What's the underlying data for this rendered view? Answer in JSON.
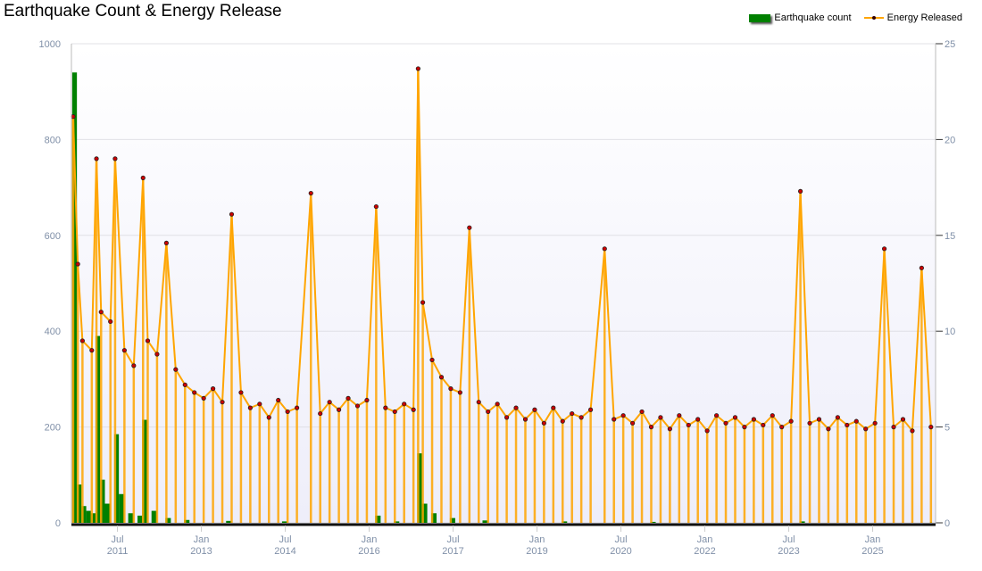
{
  "chart_data": {
    "type": "bar+line",
    "title": "Earthquake Count & Energy Release",
    "legend": [
      "Earthquake count",
      "Energy Released"
    ],
    "legend_position": "top-right",
    "colors": {
      "count": "#008000",
      "energy_line": "#ffa500",
      "energy_marker": "#cc0000"
    },
    "y_left": {
      "range": [
        0,
        1000
      ],
      "ticks": [
        "0",
        "200",
        "400",
        "600",
        "800",
        "1000"
      ]
    },
    "y_right": {
      "range": [
        0,
        25
      ],
      "ticks": [
        "0",
        "5",
        "10",
        "15",
        "20",
        "25"
      ]
    },
    "x_range": [
      "2010-09",
      "2026-02"
    ],
    "x_ticks": [
      {
        "date": "2011-07",
        "month": "Jul",
        "year": "2011"
      },
      {
        "date": "2013-01",
        "month": "Jan",
        "year": "2013"
      },
      {
        "date": "2014-07",
        "month": "Jul",
        "year": "2014"
      },
      {
        "date": "2016-01",
        "month": "Jan",
        "year": "2016"
      },
      {
        "date": "2017-07",
        "month": "Jul",
        "year": "2017"
      },
      {
        "date": "2019-01",
        "month": "Jan",
        "year": "2019"
      },
      {
        "date": "2020-07",
        "month": "Jul",
        "year": "2020"
      },
      {
        "date": "2022-01",
        "month": "Jan",
        "year": "2022"
      },
      {
        "date": "2023-07",
        "month": "Jul",
        "year": "2023"
      },
      {
        "date": "2025-01",
        "month": "Jan",
        "year": "2025"
      }
    ],
    "grid": true,
    "series": [
      {
        "name": "Earthquake count",
        "axis": "left",
        "type": "bar",
        "points": [
          [
            "2010-09",
            940
          ],
          [
            "2010-10",
            80
          ],
          [
            "2010-11",
            35
          ],
          [
            "2010-12",
            25
          ],
          [
            "2011-01",
            20
          ],
          [
            "2011-02",
            390
          ],
          [
            "2011-03",
            90
          ],
          [
            "2011-04",
            40
          ],
          [
            "2011-06",
            185
          ],
          [
            "2011-07",
            60
          ],
          [
            "2011-09",
            20
          ],
          [
            "2011-11",
            15
          ],
          [
            "2011-12",
            215
          ],
          [
            "2012-02",
            25
          ],
          [
            "2012-05",
            10
          ],
          [
            "2012-09",
            6
          ],
          [
            "2013-06",
            4
          ],
          [
            "2014-06",
            3
          ],
          [
            "2016-02",
            15
          ],
          [
            "2016-06",
            3
          ],
          [
            "2016-11",
            145
          ],
          [
            "2016-12",
            40
          ],
          [
            "2017-02",
            20
          ],
          [
            "2017-06",
            10
          ],
          [
            "2018-01",
            5
          ],
          [
            "2019-06",
            3
          ],
          [
            "2021-01",
            2
          ],
          [
            "2023-09",
            3
          ],
          [
            "2026-01",
            2
          ]
        ]
      },
      {
        "name": "Energy Released",
        "axis": "right",
        "type": "line",
        "points": [
          [
            "2010-09",
            21.2
          ],
          [
            "2010-10",
            13.5
          ],
          [
            "2010-11",
            9.5
          ],
          [
            "2011-01",
            9.0
          ],
          [
            "2011-02",
            19.0
          ],
          [
            "2011-03",
            11.0
          ],
          [
            "2011-05",
            10.5
          ],
          [
            "2011-06",
            19.0
          ],
          [
            "2011-08",
            9.0
          ],
          [
            "2011-10",
            8.2
          ],
          [
            "2011-12",
            18.0
          ],
          [
            "2012-01",
            9.5
          ],
          [
            "2012-03",
            8.8
          ],
          [
            "2012-05",
            14.6
          ],
          [
            "2012-07",
            8.0
          ],
          [
            "2012-09",
            7.2
          ],
          [
            "2012-11",
            6.8
          ],
          [
            "2013-01",
            6.5
          ],
          [
            "2013-03",
            7.0
          ],
          [
            "2013-05",
            6.3
          ],
          [
            "2013-07",
            16.1
          ],
          [
            "2013-09",
            6.8
          ],
          [
            "2013-11",
            6.0
          ],
          [
            "2014-01",
            6.2
          ],
          [
            "2014-03",
            5.5
          ],
          [
            "2014-05",
            6.4
          ],
          [
            "2014-07",
            5.8
          ],
          [
            "2014-09",
            6.0
          ],
          [
            "2014-12",
            17.2
          ],
          [
            "2015-02",
            5.7
          ],
          [
            "2015-04",
            6.3
          ],
          [
            "2015-06",
            5.9
          ],
          [
            "2015-08",
            6.5
          ],
          [
            "2015-10",
            6.1
          ],
          [
            "2015-12",
            6.4
          ],
          [
            "2016-02",
            16.5
          ],
          [
            "2016-04",
            6.0
          ],
          [
            "2016-06",
            5.8
          ],
          [
            "2016-08",
            6.2
          ],
          [
            "2016-10",
            5.9
          ],
          [
            "2016-11",
            23.7
          ],
          [
            "2016-12",
            11.5
          ],
          [
            "2017-02",
            8.5
          ],
          [
            "2017-04",
            7.6
          ],
          [
            "2017-06",
            7.0
          ],
          [
            "2017-08",
            6.8
          ],
          [
            "2017-10",
            15.4
          ],
          [
            "2017-12",
            6.3
          ],
          [
            "2018-02",
            5.8
          ],
          [
            "2018-04",
            6.2
          ],
          [
            "2018-06",
            5.5
          ],
          [
            "2018-08",
            6.0
          ],
          [
            "2018-10",
            5.4
          ],
          [
            "2018-12",
            5.9
          ],
          [
            "2019-02",
            5.2
          ],
          [
            "2019-04",
            6.0
          ],
          [
            "2019-06",
            5.3
          ],
          [
            "2019-08",
            5.7
          ],
          [
            "2019-10",
            5.5
          ],
          [
            "2019-12",
            5.9
          ],
          [
            "2020-03",
            14.3
          ],
          [
            "2020-05",
            5.4
          ],
          [
            "2020-07",
            5.6
          ],
          [
            "2020-09",
            5.2
          ],
          [
            "2020-11",
            5.8
          ],
          [
            "2021-01",
            5.0
          ],
          [
            "2021-03",
            5.5
          ],
          [
            "2021-05",
            4.9
          ],
          [
            "2021-07",
            5.6
          ],
          [
            "2021-09",
            5.1
          ],
          [
            "2021-11",
            5.4
          ],
          [
            "2022-01",
            4.8
          ],
          [
            "2022-03",
            5.6
          ],
          [
            "2022-05",
            5.2
          ],
          [
            "2022-07",
            5.5
          ],
          [
            "2022-09",
            5.0
          ],
          [
            "2022-11",
            5.4
          ],
          [
            "2023-01",
            5.1
          ],
          [
            "2023-03",
            5.6
          ],
          [
            "2023-05",
            5.0
          ],
          [
            "2023-07",
            5.3
          ],
          [
            "2023-09",
            17.3
          ],
          [
            "2023-11",
            5.2
          ],
          [
            "2024-01",
            5.4
          ],
          [
            "2024-03",
            4.9
          ],
          [
            "2024-05",
            5.5
          ],
          [
            "2024-07",
            5.1
          ],
          [
            "2024-09",
            5.3
          ],
          [
            "2024-11",
            4.9
          ],
          [
            "2025-01",
            5.2
          ],
          [
            "2025-03",
            14.3
          ],
          [
            "2025-05",
            5.0
          ],
          [
            "2025-07",
            5.4
          ],
          [
            "2025-09",
            4.8
          ],
          [
            "2025-11",
            13.3
          ],
          [
            "2026-01",
            5.0
          ]
        ]
      }
    ]
  }
}
